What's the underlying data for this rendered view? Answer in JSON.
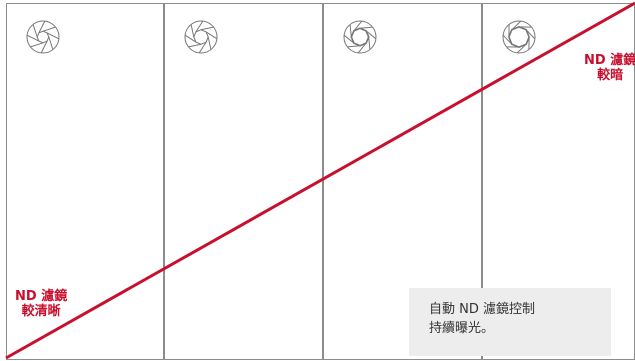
{
  "colors": {
    "accent_line": "#c8102e",
    "panel_border": "#8c8c8c",
    "caption_bg": "#ededed",
    "icon_stroke": "#777777"
  },
  "panels": [
    {
      "icon": "aperture-icon",
      "aperture_level": 0.25
    },
    {
      "icon": "aperture-icon",
      "aperture_level": 0.45
    },
    {
      "icon": "aperture-icon",
      "aperture_level": 0.65
    },
    {
      "icon": "aperture-icon",
      "aperture_level": 0.85
    }
  ],
  "labels": {
    "low": {
      "line1": "ND 濾鏡",
      "line2": "較清晰"
    },
    "high": {
      "line1": "ND 濾鏡",
      "line2": "較暗"
    }
  },
  "caption": {
    "line1": "自動 ND 濾鏡控制",
    "line2": "持續曝光。"
  }
}
